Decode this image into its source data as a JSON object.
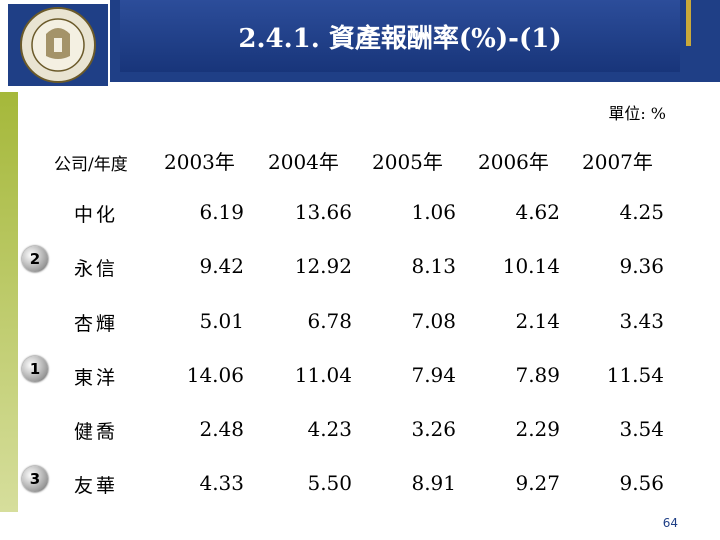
{
  "header": {
    "title": "2.4.1. 資產報酬率(%)-(1)"
  },
  "unit_label": "單位: %",
  "table": {
    "columns": [
      "公司/年度",
      "2003年",
      "2004年",
      "2005年",
      "2006年",
      "2007年"
    ],
    "rows": [
      {
        "company": "中化",
        "values": [
          "6.19",
          "13.66",
          "1.06",
          "4.62",
          "4.25"
        ],
        "rank": ""
      },
      {
        "company": "永信",
        "values": [
          "9.42",
          "12.92",
          "8.13",
          "10.14",
          "9.36"
        ],
        "rank": "2"
      },
      {
        "company": "杏輝",
        "values": [
          "5.01",
          "6.78",
          "7.08",
          "2.14",
          "3.43"
        ],
        "rank": ""
      },
      {
        "company": "東洋",
        "values": [
          "14.06",
          "11.04",
          "7.94",
          "7.89",
          "11.54"
        ],
        "rank": "1"
      },
      {
        "company": "健喬",
        "values": [
          "2.48",
          "4.23",
          "3.26",
          "2.29",
          "3.54"
        ],
        "rank": ""
      },
      {
        "company": "友華",
        "values": [
          "4.33",
          "5.50",
          "8.91",
          "9.27",
          "9.56"
        ],
        "rank": "3"
      }
    ]
  },
  "page_number": "64",
  "colors": {
    "header_blue": "#1f3f86",
    "accent_gold": "#c9a93a",
    "side_green": "#a5b83a"
  }
}
